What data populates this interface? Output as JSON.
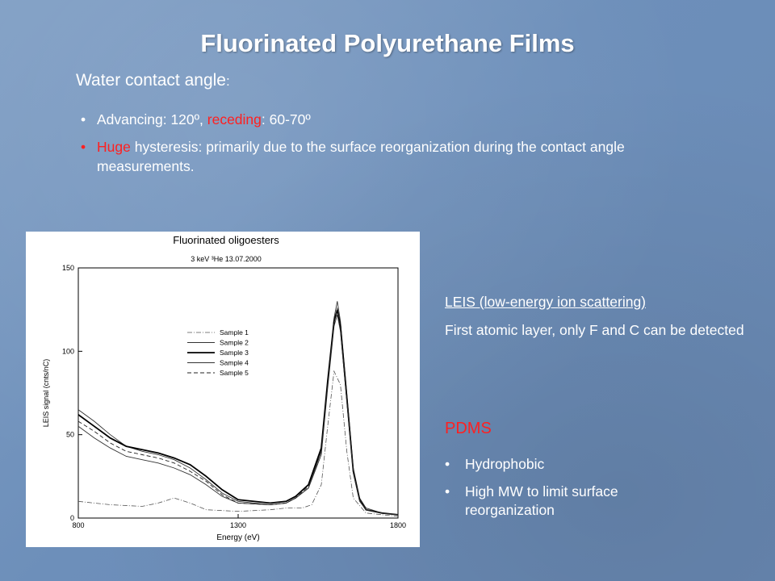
{
  "slide": {
    "title": "Fluorinated Polyurethane Films",
    "subtitle_main": "Water contact angle",
    "subtitle_colon": ":",
    "bullets": [
      {
        "parts": [
          "Advancing: 120º, ",
          "receding",
          ": 60-70º"
        ]
      },
      {
        "parts": [
          "Huge",
          " hysteresis: primarily due to the surface reorganization during the contact angle measurements."
        ]
      }
    ],
    "leis_heading": "LEIS (low-energy ion scattering)",
    "leis_text": "First atomic layer, only F and C can be detected",
    "pdms_heading": "PDMS",
    "pdms_bullets": [
      "Hydrophobic",
      "High MW to limit surface reorganization"
    ],
    "bullet_char": "•"
  },
  "chart_data": {
    "type": "line",
    "title": "Fluorinated oligoesters",
    "subtitle": "3 keV ³He 13.07.2000",
    "xlabel": "Energy (eV)",
    "ylabel": "LEIS signal (cnts/nC)",
    "xlim": [
      800,
      1800
    ],
    "ylim": [
      0,
      150
    ],
    "xticks": [
      "800",
      "1300",
      "1800"
    ],
    "yticks": [
      "0",
      "50",
      "100",
      "150"
    ],
    "legend_position": "center",
    "series": [
      {
        "name": "Sample 1",
        "style": "dash-dot",
        "x": [
          800,
          900,
          1000,
          1050,
          1100,
          1150,
          1200,
          1300,
          1400,
          1450,
          1500,
          1530,
          1560,
          1580,
          1600,
          1620,
          1640,
          1660,
          1700,
          1800
        ],
        "y": [
          10,
          8,
          7,
          9,
          12,
          9,
          5,
          4,
          5,
          6,
          6,
          8,
          20,
          55,
          88,
          80,
          40,
          12,
          3,
          1
        ]
      },
      {
        "name": "Sample 2",
        "style": "solid",
        "x": [
          800,
          850,
          900,
          950,
          1000,
          1050,
          1100,
          1150,
          1200,
          1250,
          1300,
          1400,
          1450,
          1480,
          1520,
          1560,
          1580,
          1600,
          1610,
          1620,
          1640,
          1660,
          1680,
          1700,
          1750,
          1800
        ],
        "y": [
          65,
          58,
          50,
          43,
          40,
          38,
          35,
          30,
          23,
          15,
          10,
          8,
          9,
          12,
          18,
          40,
          80,
          120,
          130,
          118,
          75,
          30,
          12,
          6,
          3,
          2
        ]
      },
      {
        "name": "Sample 3",
        "style": "bold",
        "x": [
          800,
          850,
          900,
          950,
          1000,
          1050,
          1100,
          1150,
          1200,
          1250,
          1300,
          1400,
          1450,
          1480,
          1520,
          1560,
          1580,
          1600,
          1610,
          1620,
          1640,
          1660,
          1680,
          1700,
          1750,
          1800
        ],
        "y": [
          62,
          55,
          48,
          43,
          41,
          39,
          36,
          32,
          25,
          17,
          11,
          9,
          10,
          13,
          20,
          42,
          82,
          118,
          125,
          115,
          72,
          28,
          11,
          5,
          3,
          2
        ]
      },
      {
        "name": "Sample 4",
        "style": "solid",
        "x": [
          800,
          850,
          900,
          950,
          1000,
          1050,
          1100,
          1150,
          1200,
          1250,
          1300,
          1400,
          1450,
          1480,
          1520,
          1560,
          1580,
          1600,
          1610,
          1620,
          1640,
          1660,
          1680,
          1700,
          1750,
          1800
        ],
        "y": [
          55,
          48,
          42,
          37,
          35,
          33,
          30,
          26,
          20,
          13,
          9,
          8,
          9,
          12,
          18,
          38,
          78,
          115,
          122,
          112,
          70,
          27,
          10,
          5,
          3,
          2
        ]
      },
      {
        "name": "Sample 5",
        "style": "dashed",
        "x": [
          800,
          850,
          900,
          950,
          1000,
          1050,
          1100,
          1150,
          1200,
          1250,
          1300,
          1400,
          1450,
          1480,
          1520,
          1560,
          1580,
          1600,
          1610,
          1620,
          1640,
          1660,
          1680,
          1700,
          1750,
          1800
        ],
        "y": [
          58,
          52,
          45,
          40,
          38,
          36,
          33,
          28,
          22,
          14,
          9,
          8,
          9,
          12,
          19,
          40,
          80,
          117,
          126,
          114,
          71,
          28,
          11,
          5,
          3,
          2
        ]
      }
    ]
  }
}
